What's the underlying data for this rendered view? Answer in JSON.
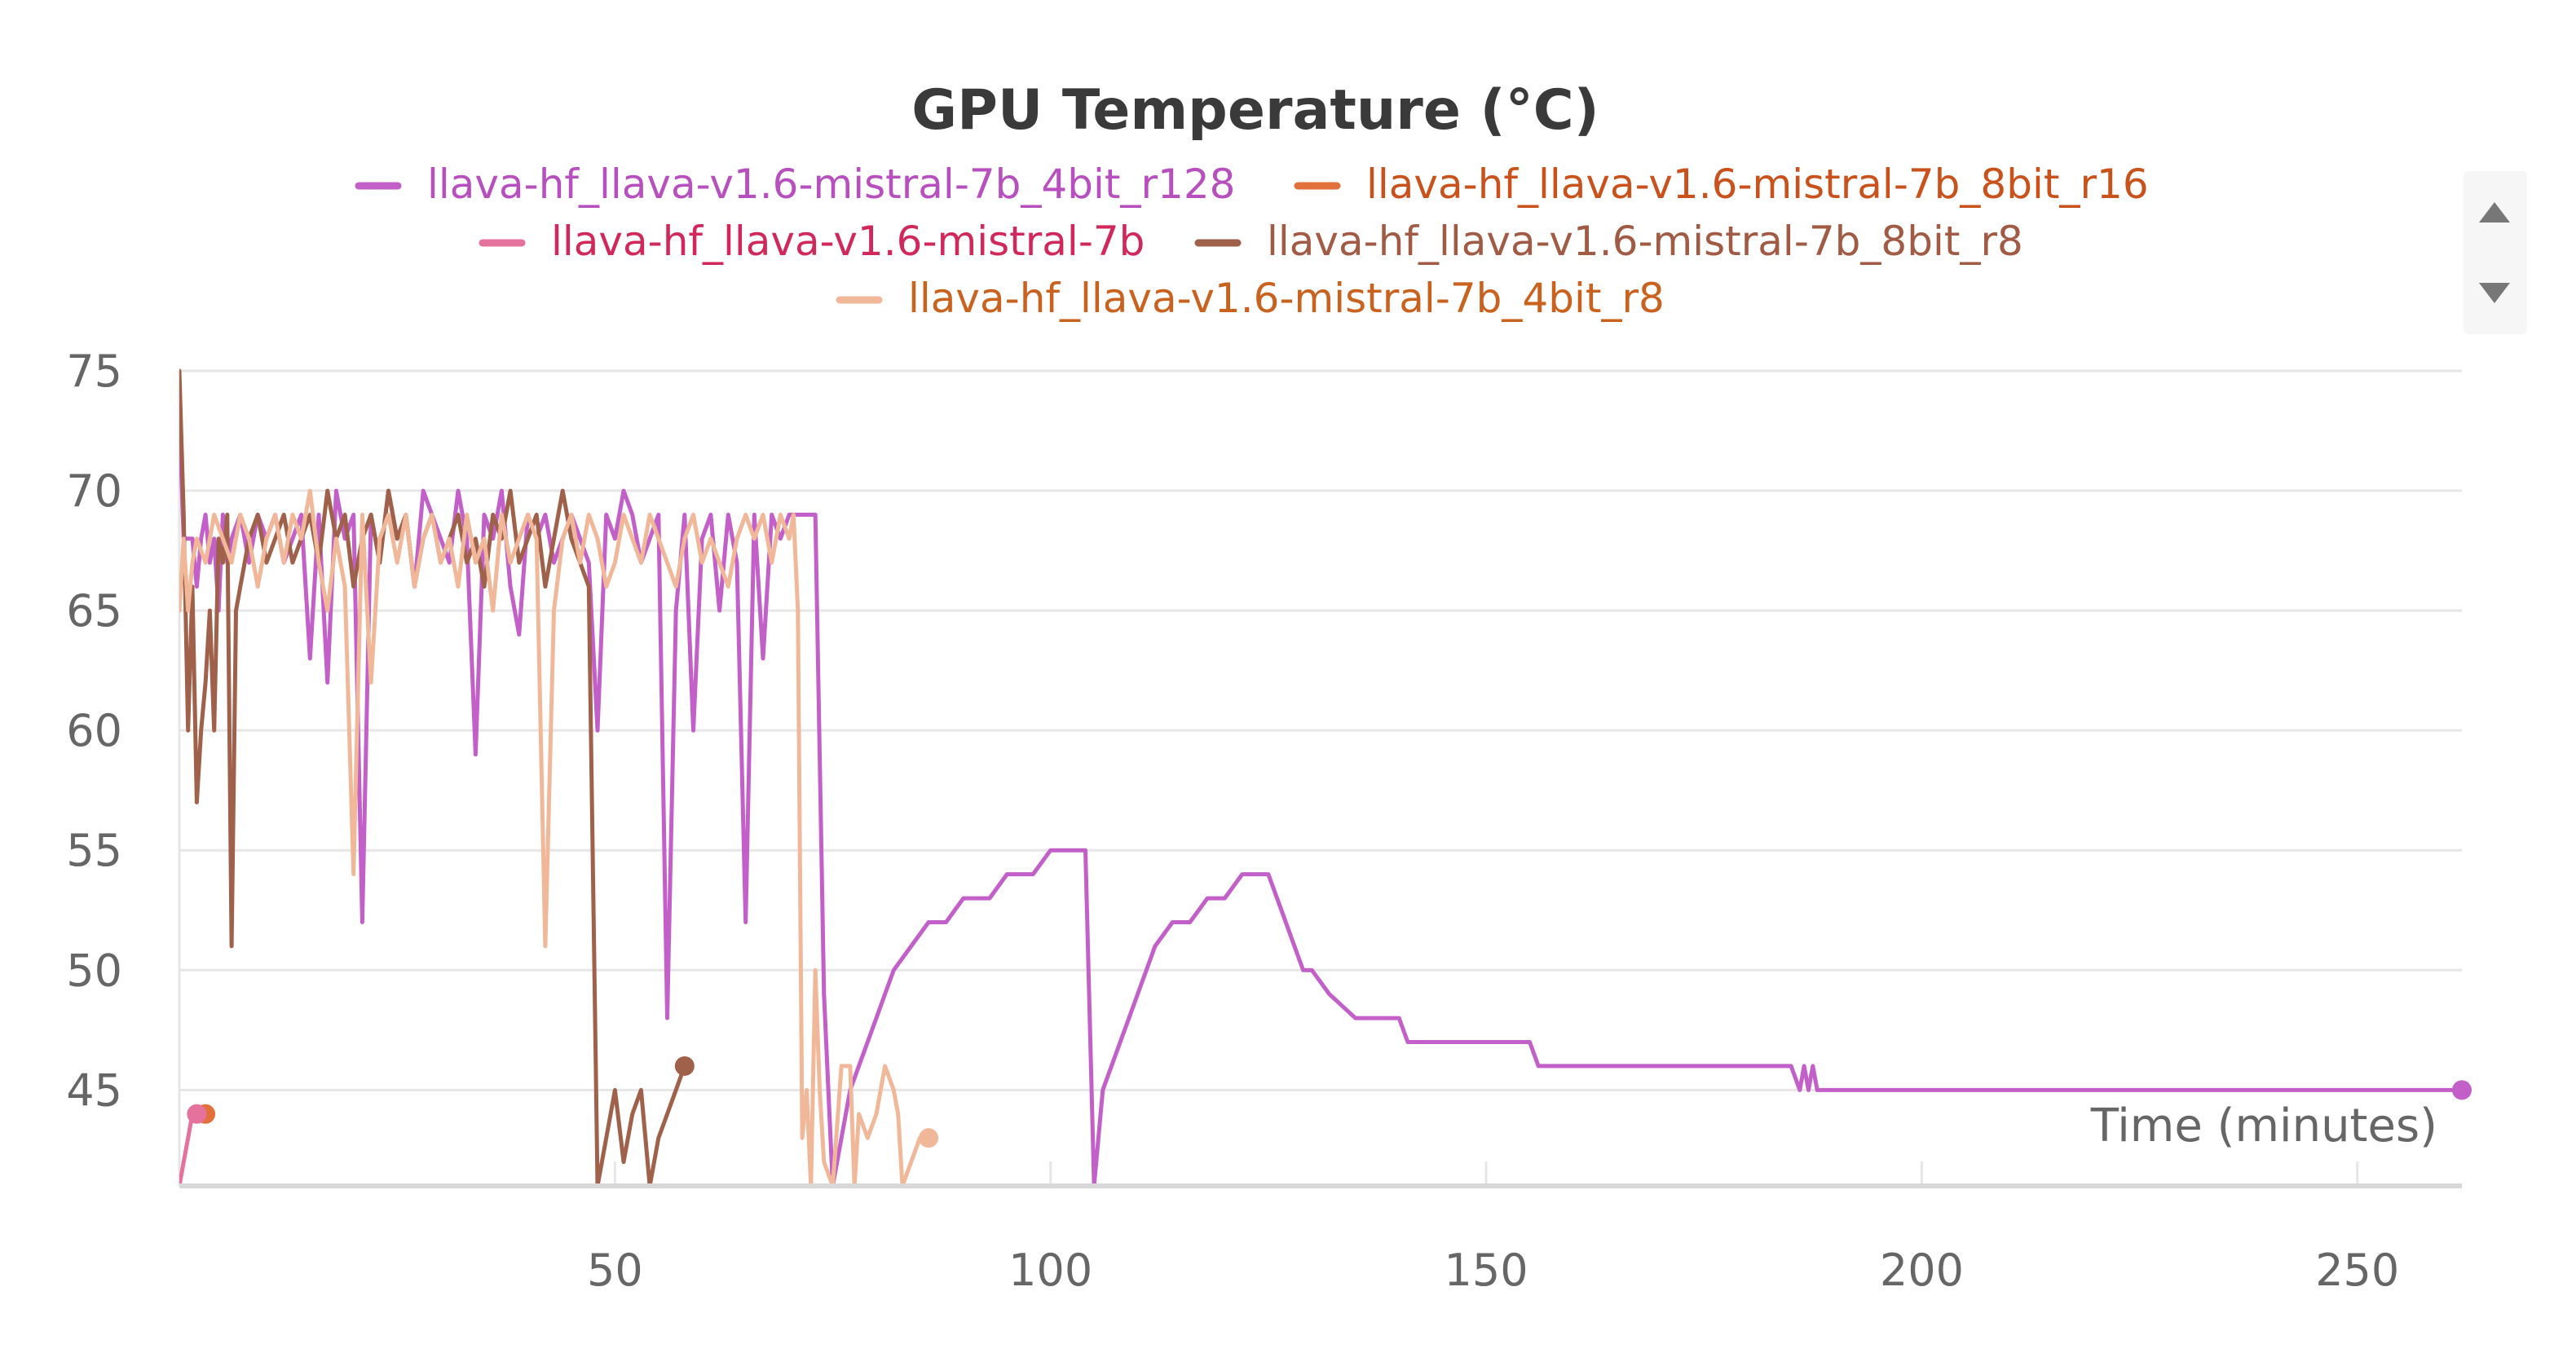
{
  "chart_data": {
    "type": "line",
    "title": "GPU Temperature (°C)",
    "xlabel": "Time (minutes)",
    "ylabel": "",
    "xlim": [
      0,
      262
    ],
    "ylim": [
      41,
      75
    ],
    "xticks": [
      50,
      100,
      150,
      200,
      250
    ],
    "yticks": [
      45,
      50,
      55,
      60,
      65,
      70,
      75
    ],
    "grid": true,
    "legend_position": "top",
    "series": [
      {
        "name": "llava-hf_llava-v1.6-mistral-7b_4bit_r128",
        "color": "#c25fc9",
        "points": [
          [
            0,
            73
          ],
          [
            0.5,
            68
          ],
          [
            1.5,
            68
          ],
          [
            2,
            66
          ],
          [
            2.5,
            68
          ],
          [
            3,
            69
          ],
          [
            3.5,
            67
          ],
          [
            4,
            68
          ],
          [
            4.5,
            65
          ],
          [
            5,
            69
          ],
          [
            5.5,
            67
          ],
          [
            6,
            68
          ],
          [
            7,
            69
          ],
          [
            8,
            67
          ],
          [
            9,
            69
          ],
          [
            10,
            68
          ],
          [
            11,
            69
          ],
          [
            12,
            67
          ],
          [
            13,
            68
          ],
          [
            14,
            69
          ],
          [
            15,
            63
          ],
          [
            16,
            69
          ],
          [
            17,
            62
          ],
          [
            18,
            70
          ],
          [
            19,
            68
          ],
          [
            20,
            69
          ],
          [
            21,
            52
          ],
          [
            22,
            69
          ],
          [
            23,
            67
          ],
          [
            24,
            70
          ],
          [
            25,
            68
          ],
          [
            26,
            69
          ],
          [
            27,
            66
          ],
          [
            28,
            70
          ],
          [
            29,
            69
          ],
          [
            30,
            68
          ],
          [
            31,
            67
          ],
          [
            32,
            70
          ],
          [
            33,
            68
          ],
          [
            34,
            59
          ],
          [
            35,
            69
          ],
          [
            36,
            68
          ],
          [
            37,
            70
          ],
          [
            38,
            66
          ],
          [
            39,
            64
          ],
          [
            40,
            69
          ],
          [
            41,
            68
          ],
          [
            42,
            69
          ],
          [
            43,
            67
          ],
          [
            44,
            68
          ],
          [
            45,
            69
          ],
          [
            46,
            68
          ],
          [
            47,
            67
          ],
          [
            48,
            60
          ],
          [
            49,
            69
          ],
          [
            50,
            68
          ],
          [
            51,
            70
          ],
          [
            52,
            69
          ],
          [
            53,
            67
          ],
          [
            54,
            68
          ],
          [
            55,
            69
          ],
          [
            56,
            48
          ],
          [
            57,
            65
          ],
          [
            58,
            69
          ],
          [
            59,
            60
          ],
          [
            60,
            68
          ],
          [
            61,
            69
          ],
          [
            62,
            65
          ],
          [
            63,
            69
          ],
          [
            64,
            67
          ],
          [
            65,
            52
          ],
          [
            66,
            69
          ],
          [
            67,
            63
          ],
          [
            68,
            69
          ],
          [
            69,
            68
          ],
          [
            70,
            69
          ],
          [
            71,
            69
          ],
          [
            72,
            69
          ],
          [
            73,
            69
          ],
          [
            74,
            49
          ],
          [
            75,
            41
          ],
          [
            76,
            43
          ],
          [
            77,
            45
          ],
          [
            78,
            46
          ],
          [
            79,
            47
          ],
          [
            80,
            48
          ],
          [
            81,
            49
          ],
          [
            82,
            50
          ],
          [
            84,
            51
          ],
          [
            86,
            52
          ],
          [
            88,
            52
          ],
          [
            90,
            53
          ],
          [
            93,
            53
          ],
          [
            95,
            54
          ],
          [
            98,
            54
          ],
          [
            100,
            55
          ],
          [
            104,
            55
          ],
          [
            105,
            41
          ],
          [
            106,
            45
          ],
          [
            107,
            46
          ],
          [
            108,
            47
          ],
          [
            109,
            48
          ],
          [
            110,
            49
          ],
          [
            111,
            50
          ],
          [
            112,
            51
          ],
          [
            114,
            52
          ],
          [
            116,
            52
          ],
          [
            118,
            53
          ],
          [
            120,
            53
          ],
          [
            122,
            54
          ],
          [
            125,
            54
          ],
          [
            126,
            53
          ],
          [
            127,
            52
          ],
          [
            128,
            51
          ],
          [
            129,
            50
          ],
          [
            130,
            50
          ],
          [
            132,
            49
          ],
          [
            135,
            48
          ],
          [
            140,
            48
          ],
          [
            141,
            47
          ],
          [
            150,
            47
          ],
          [
            155,
            47
          ],
          [
            156,
            46
          ],
          [
            165,
            46
          ],
          [
            175,
            46
          ],
          [
            185,
            46
          ],
          [
            186,
            45
          ],
          [
            186.5,
            46
          ],
          [
            187,
            45
          ],
          [
            187.5,
            46
          ],
          [
            188,
            45
          ],
          [
            200,
            45
          ],
          [
            220,
            45
          ],
          [
            240,
            45
          ],
          [
            262,
            45
          ]
        ]
      },
      {
        "name": "llava-hf_llava-v1.6-mistral-7b_8bit_r16",
        "color": "#e2703a",
        "points": [
          [
            2,
            44
          ],
          [
            3,
            44
          ]
        ]
      },
      {
        "name": "llava-hf_llava-v1.6-mistral-7b",
        "color": "#e5729c",
        "points": [
          [
            0,
            41
          ],
          [
            0.5,
            42
          ],
          [
            1,
            43
          ],
          [
            1.5,
            44
          ],
          [
            2,
            44
          ]
        ]
      },
      {
        "name": "llava-hf_llava-v1.6-mistral-7b_8bit_r8",
        "color": "#a0614a",
        "points": [
          [
            0,
            75
          ],
          [
            0.5,
            69
          ],
          [
            1,
            60
          ],
          [
            1.5,
            66
          ],
          [
            2,
            57
          ],
          [
            2.5,
            60
          ],
          [
            3,
            62
          ],
          [
            3.5,
            65
          ],
          [
            4,
            60
          ],
          [
            4.5,
            68
          ],
          [
            5,
            67
          ],
          [
            5.5,
            69
          ],
          [
            6,
            51
          ],
          [
            6.5,
            65
          ],
          [
            7,
            66
          ],
          [
            8,
            68
          ],
          [
            9,
            69
          ],
          [
            10,
            67
          ],
          [
            11,
            68
          ],
          [
            12,
            69
          ],
          [
            13,
            67
          ],
          [
            14,
            68
          ],
          [
            15,
            69
          ],
          [
            16,
            67
          ],
          [
            17,
            70
          ],
          [
            18,
            68
          ],
          [
            19,
            69
          ],
          [
            20,
            66
          ],
          [
            21,
            68
          ],
          [
            22,
            69
          ],
          [
            23,
            67
          ],
          [
            24,
            70
          ],
          [
            25,
            68
          ],
          [
            26,
            69
          ],
          [
            27,
            66
          ],
          [
            28,
            68
          ],
          [
            29,
            69
          ],
          [
            30,
            67
          ],
          [
            31,
            68
          ],
          [
            32,
            69
          ],
          [
            33,
            67
          ],
          [
            34,
            68
          ],
          [
            35,
            66
          ],
          [
            36,
            69
          ],
          [
            37,
            68
          ],
          [
            38,
            70
          ],
          [
            39,
            67
          ],
          [
            40,
            68
          ],
          [
            41,
            69
          ],
          [
            42,
            66
          ],
          [
            43,
            68
          ],
          [
            44,
            70
          ],
          [
            45,
            68
          ],
          [
            46,
            67
          ],
          [
            47,
            66
          ],
          [
            48,
            41
          ],
          [
            49,
            43
          ],
          [
            50,
            45
          ],
          [
            51,
            42
          ],
          [
            52,
            44
          ],
          [
            53,
            45
          ],
          [
            54,
            41
          ],
          [
            55,
            43
          ],
          [
            56,
            44
          ],
          [
            57,
            45
          ],
          [
            58,
            46
          ]
        ]
      },
      {
        "name": "llava-hf_llava-v1.6-mistral-7b_4bit_r8",
        "color": "#f0b899",
        "points": [
          [
            0,
            65
          ],
          [
            0.5,
            68
          ],
          [
            1,
            65
          ],
          [
            1.5,
            67
          ],
          [
            2,
            68
          ],
          [
            3,
            67
          ],
          [
            4,
            69
          ],
          [
            5,
            68
          ],
          [
            6,
            67
          ],
          [
            7,
            69
          ],
          [
            8,
            68
          ],
          [
            9,
            66
          ],
          [
            10,
            68
          ],
          [
            11,
            69
          ],
          [
            12,
            67
          ],
          [
            13,
            69
          ],
          [
            14,
            68
          ],
          [
            15,
            70
          ],
          [
            16,
            67
          ],
          [
            17,
            65
          ],
          [
            18,
            68
          ],
          [
            19,
            66
          ],
          [
            20,
            54
          ],
          [
            21,
            69
          ],
          [
            22,
            62
          ],
          [
            23,
            68
          ],
          [
            24,
            69
          ],
          [
            25,
            67
          ],
          [
            26,
            69
          ],
          [
            27,
            66
          ],
          [
            28,
            68
          ],
          [
            29,
            69
          ],
          [
            30,
            67
          ],
          [
            31,
            68
          ],
          [
            32,
            66
          ],
          [
            33,
            69
          ],
          [
            34,
            67
          ],
          [
            35,
            68
          ],
          [
            36,
            65
          ],
          [
            37,
            69
          ],
          [
            38,
            67
          ],
          [
            39,
            68
          ],
          [
            40,
            69
          ],
          [
            41,
            68
          ],
          [
            42,
            51
          ],
          [
            43,
            65
          ],
          [
            44,
            68
          ],
          [
            45,
            69
          ],
          [
            46,
            67
          ],
          [
            47,
            69
          ],
          [
            48,
            68
          ],
          [
            49,
            66
          ],
          [
            50,
            67
          ],
          [
            51,
            69
          ],
          [
            52,
            68
          ],
          [
            53,
            67
          ],
          [
            54,
            69
          ],
          [
            55,
            68
          ],
          [
            56,
            67
          ],
          [
            57,
            66
          ],
          [
            58,
            68
          ],
          [
            59,
            69
          ],
          [
            60,
            67
          ],
          [
            61,
            68
          ],
          [
            62,
            67
          ],
          [
            63,
            66
          ],
          [
            64,
            68
          ],
          [
            65,
            69
          ],
          [
            66,
            68
          ],
          [
            67,
            69
          ],
          [
            68,
            67
          ],
          [
            69,
            69
          ],
          [
            70,
            68
          ],
          [
            70.5,
            69
          ],
          [
            71,
            65
          ],
          [
            71.5,
            43
          ],
          [
            72,
            45
          ],
          [
            72.5,
            41
          ],
          [
            73,
            50
          ],
          [
            73.5,
            45
          ],
          [
            74,
            42
          ],
          [
            75,
            41
          ],
          [
            76,
            46
          ],
          [
            77,
            46
          ],
          [
            77.5,
            41
          ],
          [
            78,
            44
          ],
          [
            79,
            43
          ],
          [
            80,
            44
          ],
          [
            81,
            46
          ],
          [
            82,
            45
          ],
          [
            82.5,
            44
          ],
          [
            83,
            41
          ],
          [
            84,
            42
          ],
          [
            85,
            43
          ],
          [
            86,
            43
          ]
        ]
      }
    ]
  }
}
